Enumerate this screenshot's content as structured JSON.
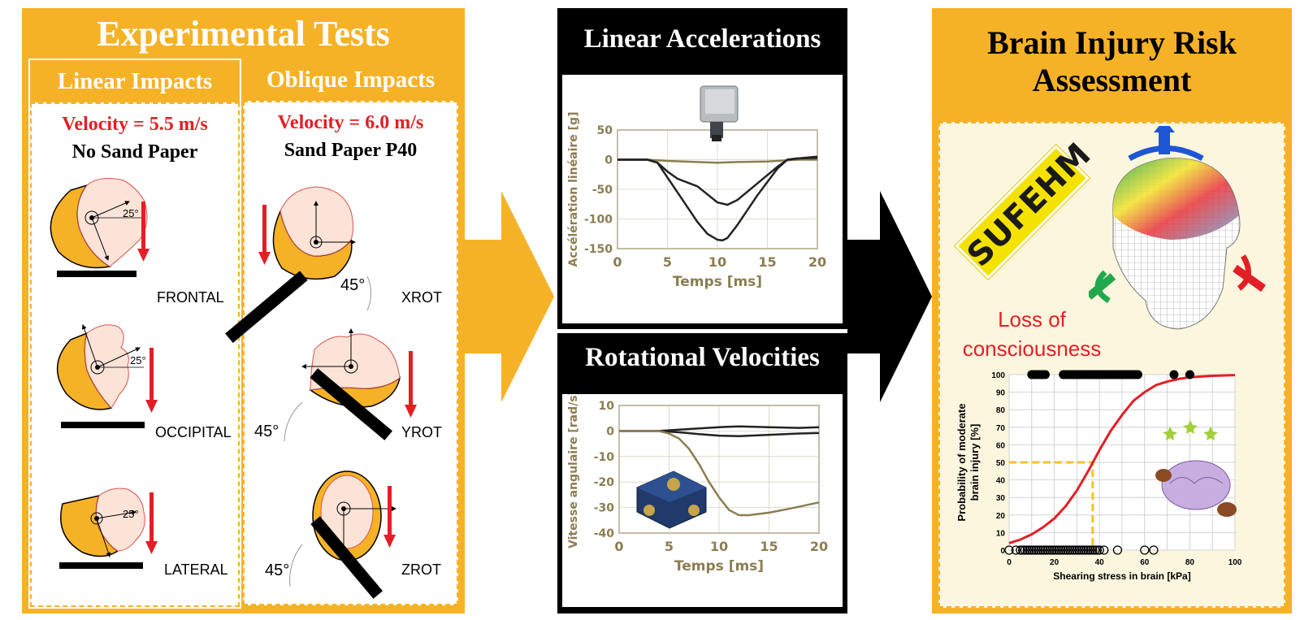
{
  "experimental": {
    "title": "Experimental Tests",
    "linear": {
      "header": "Linear Impacts",
      "velocity": "Velocity = 5.5 m/s",
      "condition": "No Sand Paper",
      "cases": [
        "FRONTAL",
        "OCCIPITAL",
        "LATERAL"
      ],
      "angle": "25°"
    },
    "oblique": {
      "header": "Oblique Impacts",
      "velocity": "Velocity = 6.0 m/s",
      "condition": "Sand Paper P40",
      "cases": [
        "XROT",
        "YROT",
        "ZROT"
      ],
      "angle": "45°"
    }
  },
  "measurements": {
    "linear_title": "Linear Accelerations",
    "rotational_title": "Rotational Velocities"
  },
  "assessment": {
    "title_line1": "Brain Injury Risk",
    "title_line2": "Assessment",
    "model_label": "SUFEHM",
    "outcome_line1": "Loss of",
    "outcome_line2": "consciousness"
  },
  "colors": {
    "accent": "#f6b227",
    "red": "#e31f26",
    "olive": "#8b7d52"
  },
  "chart_data": [
    {
      "type": "line",
      "title": "",
      "xlabel": "Temps [ms]",
      "ylabel": "Accélération linéaire [g]",
      "xlim": [
        0,
        20
      ],
      "ylim": [
        -150,
        50
      ],
      "xticks": [
        "0",
        "5",
        "10",
        "15",
        "20"
      ],
      "yticks": [
        "50",
        "0",
        "-50",
        "-100",
        "-150"
      ],
      "series": [
        {
          "color": "#8b7d52",
          "x": [
            0,
            3,
            5,
            8,
            10,
            12,
            15,
            18,
            20
          ],
          "y": [
            0,
            0,
            -2,
            -4,
            -5,
            -4,
            -3,
            0,
            0
          ]
        },
        {
          "color": "#222222",
          "x": [
            0,
            3,
            4,
            5,
            6,
            8,
            10,
            11,
            12,
            14,
            16,
            17,
            18,
            20
          ],
          "y": [
            0,
            0,
            -5,
            -20,
            -32,
            -45,
            -72,
            -76,
            -68,
            -40,
            -12,
            0,
            2,
            5
          ]
        },
        {
          "color": "#222222",
          "x": [
            0,
            3,
            4,
            5,
            6,
            7,
            8,
            9,
            10,
            10.5,
            11,
            12,
            14,
            16,
            17,
            18,
            20
          ],
          "y": [
            0,
            0,
            -5,
            -30,
            -55,
            -80,
            -105,
            -125,
            -135,
            -136,
            -132,
            -110,
            -60,
            -15,
            0,
            2,
            3
          ]
        }
      ]
    },
    {
      "type": "line",
      "title": "",
      "xlabel": "Temps [ms]",
      "ylabel": "Vitesse angulaire [rad/s]",
      "xlim": [
        0,
        20
      ],
      "ylim": [
        -40,
        10
      ],
      "xticks": [
        "0",
        "5",
        "10",
        "15",
        "20"
      ],
      "yticks": [
        "10",
        "0",
        "-10",
        "-20",
        "-30",
        "-40"
      ],
      "series": [
        {
          "color": "#222222",
          "x": [
            0,
            4,
            6,
            8,
            10,
            12,
            15,
            18,
            20
          ],
          "y": [
            0,
            0,
            0.5,
            1,
            1.5,
            1.8,
            1.5,
            1.2,
            1.5
          ]
        },
        {
          "color": "#222222",
          "x": [
            0,
            4,
            6,
            8,
            10,
            12,
            15,
            18,
            20
          ],
          "y": [
            0,
            0,
            -0.5,
            -1.2,
            -1.8,
            -2,
            -1.5,
            -1,
            -0.8
          ]
        },
        {
          "color": "#8b7d52",
          "x": [
            0,
            4,
            5,
            6,
            7,
            8,
            9,
            10,
            11,
            12,
            13,
            15,
            17,
            20
          ],
          "y": [
            0,
            0,
            -1,
            -3,
            -7,
            -13,
            -20,
            -26,
            -31,
            -33,
            -33,
            -32,
            -30.5,
            -28
          ]
        }
      ]
    },
    {
      "type": "scatter",
      "title": "",
      "xlabel": "Shearing stress in brain [kPa]",
      "ylabel": "Probability of moderate brain injury [%]",
      "xlim": [
        0,
        100
      ],
      "ylim": [
        0,
        100
      ],
      "xticks": [
        "0",
        "20",
        "40",
        "60",
        "80",
        "100"
      ],
      "yticks": [
        "0",
        "10",
        "20",
        "30",
        "40",
        "50",
        "60",
        "70",
        "80",
        "90",
        "100"
      ],
      "curve": {
        "color": "#e31f26",
        "x": [
          0,
          5,
          10,
          15,
          20,
          25,
          30,
          35,
          40,
          45,
          50,
          55,
          60,
          65,
          70,
          75,
          80,
          90,
          100
        ],
        "y": [
          4,
          6,
          9,
          13,
          18,
          25,
          34,
          45,
          57,
          68,
          77,
          85,
          90,
          94,
          96,
          97.5,
          98.5,
          99.3,
          99.7
        ]
      },
      "threshold": {
        "x": 37,
        "y": 50
      },
      "injured": [
        10,
        11,
        12,
        13,
        14,
        15,
        16,
        24,
        25,
        26,
        27,
        28,
        29,
        30,
        31,
        32,
        33,
        34,
        35,
        36,
        37,
        38,
        39,
        40,
        41,
        42,
        43,
        44,
        45,
        46,
        47,
        48,
        49,
        50,
        51,
        52,
        53,
        54,
        55,
        56,
        57,
        73,
        80
      ],
      "non_injured": [
        0,
        3,
        5,
        6,
        7,
        8,
        9,
        10,
        11,
        12,
        13,
        14,
        15,
        16,
        17,
        18,
        19,
        20,
        21,
        22,
        23,
        24,
        25,
        26,
        27,
        28,
        29,
        30,
        31,
        32,
        33,
        34,
        35,
        36,
        37,
        38,
        39,
        40,
        42,
        48,
        60,
        64
      ]
    }
  ]
}
